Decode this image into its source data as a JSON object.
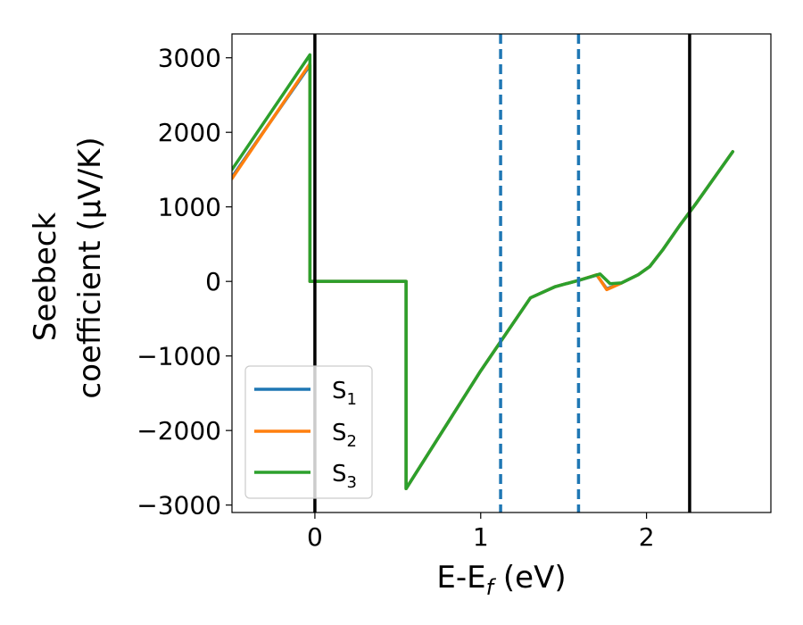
{
  "chart_data": {
    "type": "line",
    "xlabel": "E-E_f (eV)",
    "ylabel_line1": "Seebeck",
    "ylabel_line2": "coefficient  (μV/K)",
    "xlim": [
      -0.5,
      2.75
    ],
    "ylim": [
      -3100,
      3320
    ],
    "xticks": [
      0,
      1,
      2
    ],
    "yticks": [
      -3000,
      -2000,
      -1000,
      0,
      1000,
      2000,
      3000
    ],
    "ytick_labels": [
      "−3000",
      "−2000",
      "−1000",
      "0",
      "1000",
      "2000",
      "3000"
    ],
    "xtick_labels": [
      "0",
      "1",
      "2"
    ],
    "grid": false,
    "legend_position": "lower-left",
    "colors": {
      "S_1": "#1f77b4",
      "S_2": "#ff7f0e",
      "S_3": "#2ca02c",
      "solid_lines": "#000000",
      "dashed_lines": "#1f77b4"
    },
    "vlines_solid": [
      0.0,
      2.26
    ],
    "vlines_dashed": [
      1.12,
      1.59
    ],
    "series": [
      {
        "name": "S_1",
        "x": [
          -0.5,
          -0.03,
          -0.03,
          0.55,
          0.55,
          1.0,
          1.3,
          1.45,
          1.6,
          1.7,
          1.76,
          1.85,
          1.95,
          2.02,
          2.1,
          2.2,
          2.3,
          2.52
        ],
        "y": [
          1400,
          2900,
          0,
          0,
          -2780,
          -1200,
          -220,
          -70,
          20,
          85,
          -100,
          -20,
          90,
          200,
          430,
          750,
          1050,
          1740
        ]
      },
      {
        "name": "S_2",
        "x": [
          -0.5,
          -0.03,
          -0.03,
          0.55,
          0.55,
          1.0,
          1.3,
          1.45,
          1.6,
          1.7,
          1.76,
          1.85,
          1.95,
          2.02,
          2.1,
          2.2,
          2.3,
          2.52
        ],
        "y": [
          1380,
          2920,
          0,
          0,
          -2780,
          -1200,
          -220,
          -70,
          20,
          90,
          -110,
          -20,
          90,
          200,
          430,
          750,
          1050,
          1740
        ]
      },
      {
        "name": "S_3",
        "x": [
          -0.5,
          -0.03,
          -0.03,
          0.55,
          0.55,
          1.0,
          1.3,
          1.45,
          1.6,
          1.72,
          1.78,
          1.85,
          1.95,
          2.02,
          2.1,
          2.2,
          2.3,
          2.52
        ],
        "y": [
          1500,
          3040,
          0,
          0,
          -2780,
          -1200,
          -220,
          -70,
          20,
          100,
          -30,
          -20,
          90,
          200,
          430,
          750,
          1050,
          1740
        ]
      }
    ]
  },
  "legend": {
    "entries": [
      {
        "base": "S",
        "sub": "1"
      },
      {
        "base": "S",
        "sub": "2"
      },
      {
        "base": "S",
        "sub": "3"
      }
    ]
  }
}
